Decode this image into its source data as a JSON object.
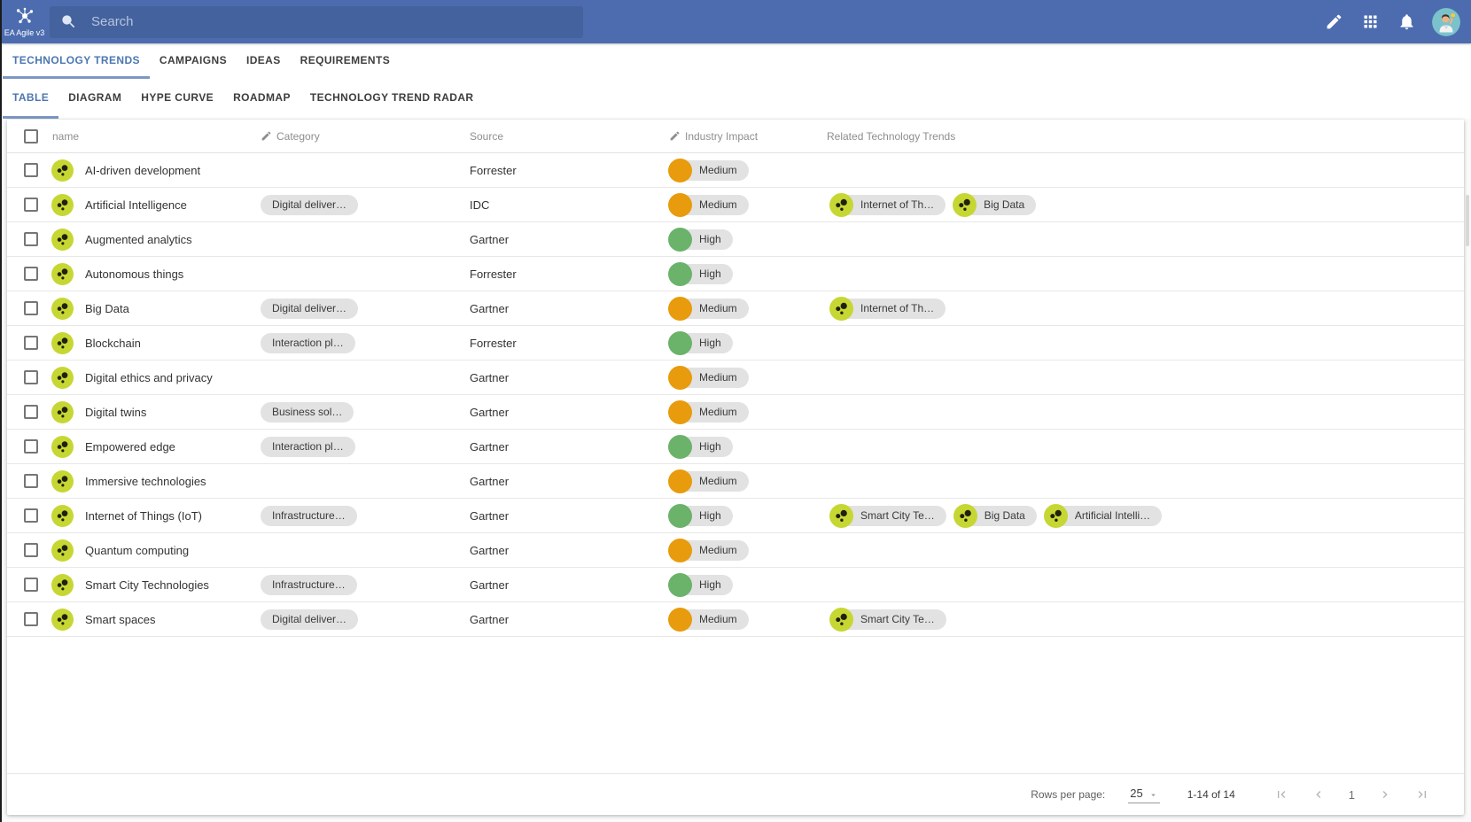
{
  "appbar": {
    "logo_text": "EA Agile v3",
    "search_placeholder": "Search",
    "action_icons": [
      "edit-icon",
      "apps-grid-icon",
      "notifications-bell-icon",
      "user-avatar"
    ]
  },
  "primary_tabs": [
    {
      "label": "TECHNOLOGY TRENDS",
      "active": true
    },
    {
      "label": "CAMPAIGNS",
      "active": false
    },
    {
      "label": "IDEAS",
      "active": false
    },
    {
      "label": "REQUIREMENTS",
      "active": false
    }
  ],
  "secondary_tabs": [
    {
      "label": "TABLE",
      "active": true
    },
    {
      "label": "DIAGRAM",
      "active": false
    },
    {
      "label": "HYPE CURVE",
      "active": false
    },
    {
      "label": "ROADMAP",
      "active": false
    },
    {
      "label": "TECHNOLOGY TREND RADAR",
      "active": false
    }
  ],
  "table": {
    "headers": [
      {
        "label": "name",
        "editable": false
      },
      {
        "label": "Category",
        "editable": true
      },
      {
        "label": "Source",
        "editable": false
      },
      {
        "label": "Industry Impact",
        "editable": true
      },
      {
        "label": "Related Technology Trends",
        "editable": false
      }
    ],
    "rows": [
      {
        "name": "AI-driven development",
        "category": null,
        "source": "Forrester",
        "impact": "Medium",
        "related": []
      },
      {
        "name": "Artificial Intelligence",
        "category": "Digital deliver…",
        "source": "IDC",
        "impact": "Medium",
        "related": [
          "Internet of Th…",
          "Big Data"
        ]
      },
      {
        "name": "Augmented analytics",
        "category": null,
        "source": "Gartner",
        "impact": "High",
        "related": []
      },
      {
        "name": "Autonomous things",
        "category": null,
        "source": "Forrester",
        "impact": "High",
        "related": []
      },
      {
        "name": "Big Data",
        "category": "Digital deliver…",
        "source": "Gartner",
        "impact": "Medium",
        "related": [
          "Internet of Th…"
        ]
      },
      {
        "name": "Blockchain",
        "category": "Interaction pl…",
        "source": "Forrester",
        "impact": "High",
        "related": []
      },
      {
        "name": "Digital ethics and privacy",
        "category": null,
        "source": "Gartner",
        "impact": "Medium",
        "related": []
      },
      {
        "name": "Digital twins",
        "category": "Business sol…",
        "source": "Gartner",
        "impact": "Medium",
        "related": []
      },
      {
        "name": "Empowered edge",
        "category": "Interaction pl…",
        "source": "Gartner",
        "impact": "High",
        "related": []
      },
      {
        "name": "Immersive technologies",
        "category": null,
        "source": "Gartner",
        "impact": "Medium",
        "related": []
      },
      {
        "name": "Internet of Things (IoT)",
        "category": "Infrastructure…",
        "source": "Gartner",
        "impact": "High",
        "related": [
          "Smart City Te…",
          "Big Data",
          "Artificial Intelli…"
        ]
      },
      {
        "name": "Quantum computing",
        "category": null,
        "source": "Gartner",
        "impact": "Medium",
        "related": []
      },
      {
        "name": "Smart City Technologies",
        "category": "Infrastructure…",
        "source": "Gartner",
        "impact": "High",
        "related": []
      },
      {
        "name": "Smart spaces",
        "category": "Digital deliver…",
        "source": "Gartner",
        "impact": "Medium",
        "related": [
          "Smart City Te…"
        ]
      }
    ]
  },
  "pagination": {
    "rows_per_page_label": "Rows per page:",
    "rows_per_page_value": "25",
    "range_label": "1-14 of 14",
    "current_page": "1"
  },
  "colors": {
    "appbar_bg": "#4C6CAF",
    "search_bg": "#44629E",
    "active_tab": "#4C76B2",
    "chip_bg": "#E2E2E2",
    "trend_icon": "#C6D733",
    "impact_levels": {
      "Medium": "#E89B0C",
      "High": "#6BB26B"
    }
  }
}
